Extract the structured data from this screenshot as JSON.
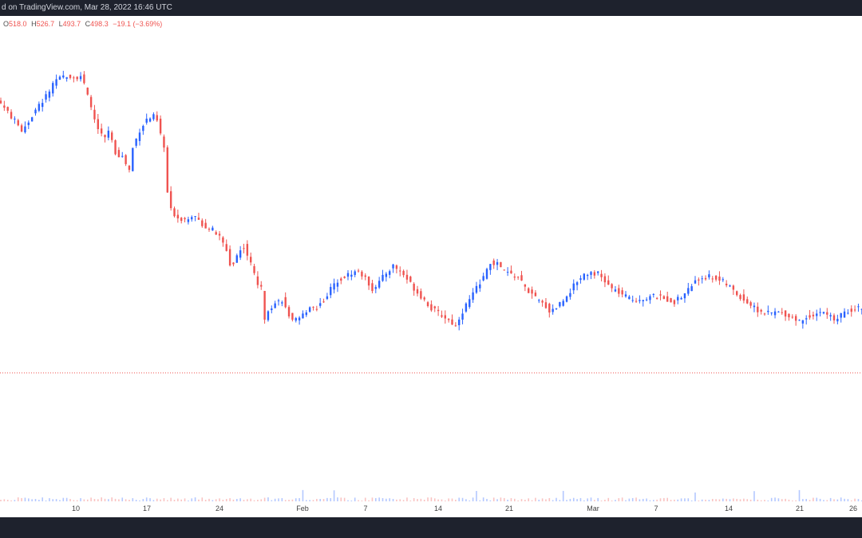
{
  "header": {
    "source_text": "d on TradingView.com, Mar 28, 2022 16:46 UTC"
  },
  "ohlc": {
    "open_label": "O",
    "open": "518.0",
    "high_label": "H",
    "high": "526.7",
    "low_label": "L",
    "low": "493.7",
    "close_label": "C",
    "close": "498.3",
    "change": "−19.1 (−3.69%)"
  },
  "colors": {
    "up": "#2962ff",
    "down": "#ef5350",
    "price_line": "#ef5350",
    "header_bg": "#1e222d"
  },
  "chart_data": {
    "type": "candlestick",
    "title": "",
    "xlabel": "",
    "ylabel": "",
    "price_line": 518.0,
    "x_ticks": [
      "10",
      "17",
      "24",
      "Feb",
      "7",
      "14",
      "21",
      "Mar",
      "7",
      "14",
      "21",
      "26"
    ],
    "close_path": [
      [
        0,
        820
      ],
      [
        3,
        805
      ],
      [
        6,
        790
      ],
      [
        8,
        800
      ],
      [
        10,
        812
      ],
      [
        13,
        828
      ],
      [
        15,
        840
      ],
      [
        17,
        848
      ],
      [
        19,
        852
      ],
      [
        21,
        849
      ],
      [
        23,
        851
      ],
      [
        24,
        840
      ],
      [
        26,
        815
      ],
      [
        28,
        790
      ],
      [
        30,
        780
      ],
      [
        31,
        790
      ],
      [
        33,
        765
      ],
      [
        35,
        760
      ],
      [
        37,
        745
      ],
      [
        38,
        770
      ],
      [
        40,
        790
      ],
      [
        42,
        802
      ],
      [
        44,
        805
      ],
      [
        45,
        800
      ],
      [
        47,
        770
      ],
      [
        48,
        720
      ],
      [
        49,
        700
      ],
      [
        51,
        692
      ],
      [
        53,
        690
      ],
      [
        55,
        695
      ],
      [
        57,
        688
      ],
      [
        59,
        682
      ],
      [
        61,
        678
      ],
      [
        63,
        670
      ],
      [
        65,
        655
      ],
      [
        66,
        640
      ],
      [
        67,
        640
      ],
      [
        68,
        650
      ],
      [
        70,
        660
      ],
      [
        72,
        640
      ],
      [
        74,
        618
      ],
      [
        75,
        612
      ],
      [
        76,
        580
      ],
      [
        77,
        590
      ],
      [
        79,
        596
      ],
      [
        81,
        600
      ],
      [
        82,
        590
      ],
      [
        84,
        575
      ],
      [
        86,
        578
      ],
      [
        88,
        588
      ],
      [
        89,
        593
      ],
      [
        91,
        591
      ],
      [
        93,
        600
      ],
      [
        95,
        612
      ],
      [
        97,
        622
      ],
      [
        99,
        626
      ],
      [
        101,
        630
      ],
      [
        103,
        632
      ],
      [
        104,
        628
      ],
      [
        106,
        618
      ],
      [
        107,
        612
      ],
      [
        109,
        620
      ],
      [
        111,
        630
      ],
      [
        113,
        638
      ],
      [
        114,
        635
      ],
      [
        116,
        628
      ],
      [
        118,
        618
      ],
      [
        120,
        608
      ],
      [
        122,
        600
      ],
      [
        124,
        590
      ],
      [
        126,
        585
      ],
      [
        128,
        580
      ],
      [
        130,
        574
      ],
      [
        131,
        570
      ],
      [
        132,
        580
      ],
      [
        134,
        594
      ],
      [
        136,
        606
      ],
      [
        138,
        620
      ],
      [
        140,
        632
      ],
      [
        141,
        641
      ],
      [
        143,
        640
      ],
      [
        145,
        632
      ],
      [
        147,
        628
      ],
      [
        149,
        625
      ],
      [
        151,
        614
      ],
      [
        153,
        605
      ],
      [
        155,
        598
      ],
      [
        157,
        593
      ],
      [
        158,
        587
      ],
      [
        160,
        592
      ],
      [
        162,
        600
      ],
      [
        164,
        610
      ],
      [
        166,
        621
      ],
      [
        168,
        629
      ],
      [
        170,
        631
      ],
      [
        172,
        629
      ],
      [
        174,
        620
      ],
      [
        176,
        612
      ],
      [
        178,
        608
      ],
      [
        180,
        603
      ],
      [
        182,
        600
      ],
      [
        184,
        601
      ],
      [
        186,
        602
      ],
      [
        188,
        604
      ],
      [
        190,
        602
      ],
      [
        192,
        600
      ],
      [
        194,
        598
      ],
      [
        196,
        603
      ],
      [
        198,
        612
      ],
      [
        200,
        620
      ],
      [
        202,
        625
      ],
      [
        204,
        626
      ],
      [
        206,
        624
      ],
      [
        208,
        620
      ],
      [
        210,
        614
      ],
      [
        212,
        606
      ],
      [
        214,
        600
      ],
      [
        216,
        594
      ],
      [
        218,
        588
      ],
      [
        220,
        585
      ],
      [
        222,
        585
      ],
      [
        224,
        586
      ],
      [
        226,
        584
      ],
      [
        228,
        580
      ],
      [
        230,
        576
      ],
      [
        232,
        580
      ],
      [
        234,
        584
      ],
      [
        236,
        586
      ],
      [
        238,
        584
      ],
      [
        240,
        578
      ],
      [
        242,
        582
      ],
      [
        244,
        588
      ],
      [
        246,
        590
      ],
      [
        248,
        592
      ],
      [
        249,
        592
      ]
    ]
  }
}
